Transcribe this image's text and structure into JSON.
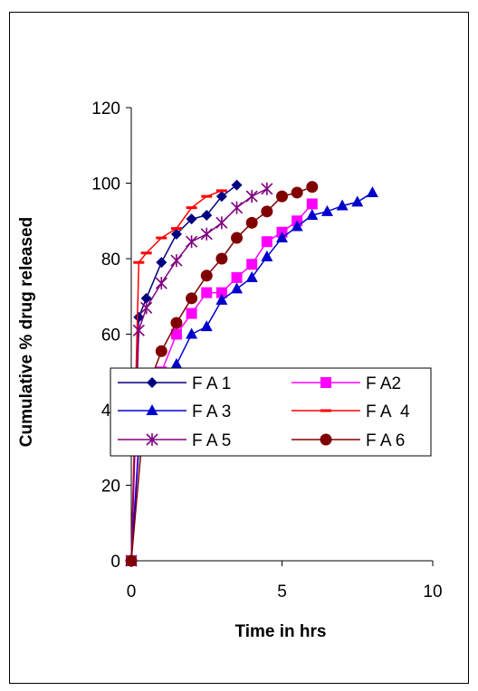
{
  "chart_data": {
    "type": "line",
    "title": "",
    "xlabel": "Time in hrs",
    "ylabel": "Cumulative % drug released",
    "xlim": [
      0,
      10
    ],
    "ylim": [
      0,
      120
    ],
    "x_ticks": [
      "0",
      "5",
      "10"
    ],
    "y_ticks": [
      "0",
      "20",
      "40",
      "60",
      "80",
      "100",
      "120"
    ],
    "grid": false,
    "legend_position": "center-left, overlapping plot",
    "series": [
      {
        "name": "F A 1",
        "color": "#000080",
        "marker": "diamond",
        "x": [
          0,
          0.25,
          0.5,
          1,
          1.5,
          2,
          2.5,
          3,
          3.5
        ],
        "y": [
          0,
          64.5,
          69.5,
          79,
          86.5,
          90.5,
          91.5,
          96.5,
          99.5
        ]
      },
      {
        "name": "F A2",
        "color": "#ff00ff",
        "marker": "square",
        "x": [
          0,
          0.25,
          0.5,
          1,
          1.5,
          2,
          2.5,
          3,
          3.5,
          4,
          4.5,
          5,
          5.5,
          6
        ],
        "y": [
          0,
          32,
          42,
          50,
          60,
          65.5,
          71,
          71,
          75,
          78.5,
          84.5,
          87,
          90,
          94.5
        ]
      },
      {
        "name": "F A 3",
        "color": "#0000cd",
        "marker": "triangle",
        "x": [
          0,
          0.25,
          0.5,
          1,
          1.5,
          2,
          2.5,
          3,
          3.5,
          4,
          4.5,
          5,
          5.5,
          6,
          6.5,
          7,
          7.5,
          8
        ],
        "y": [
          0,
          30,
          38,
          45,
          52,
          60,
          62,
          69,
          72,
          75,
          80.5,
          85.5,
          88.5,
          91.5,
          92.5,
          94,
          95,
          97.5
        ]
      },
      {
        "name": "F A  4",
        "color": "#ff0000",
        "marker": "dash",
        "x": [
          0,
          0.25,
          0.5,
          1,
          1.5,
          2,
          2.5,
          3
        ],
        "y": [
          0,
          79,
          81.5,
          85.5,
          88,
          93.5,
          96.5,
          98
        ]
      },
      {
        "name": "F A 5",
        "color": "#800080",
        "marker": "star",
        "x": [
          0,
          0.25,
          0.5,
          1,
          1.5,
          2,
          2.5,
          3,
          3.5,
          4,
          4.5
        ],
        "y": [
          0,
          61,
          67,
          73.5,
          79.5,
          84.5,
          86.5,
          89.5,
          93.5,
          96.5,
          98.5
        ]
      },
      {
        "name": "F A 6",
        "color": "#800000",
        "marker": "circle",
        "x": [
          0,
          0.5,
          1,
          1.5,
          2,
          2.5,
          3,
          3.5,
          4,
          4.5,
          5,
          5.5,
          6
        ],
        "y": [
          0,
          45,
          55.5,
          63,
          69.5,
          75.5,
          80,
          85.5,
          89.5,
          92.5,
          96.5,
          97.5,
          99
        ]
      }
    ]
  }
}
